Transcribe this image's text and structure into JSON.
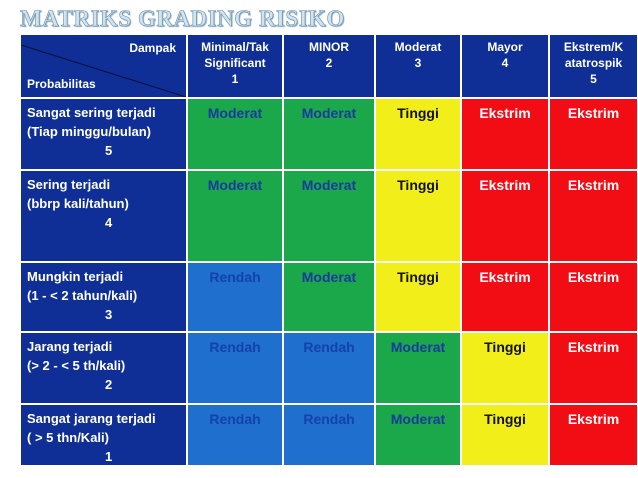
{
  "title": "MATRIKS GRADING RISIKO",
  "corner": {
    "dampak": "Dampak",
    "probabilitas": "Probabilitas"
  },
  "columns": [
    {
      "lines": [
        "Minimal/Tak",
        "Significant",
        "1"
      ]
    },
    {
      "lines": [
        "MINOR",
        "2"
      ]
    },
    {
      "lines": [
        "Moderat",
        "3"
      ]
    },
    {
      "lines": [
        "Mayor",
        "4"
      ]
    },
    {
      "lines": [
        "Ekstrem/K",
        "atatrospik",
        "5"
      ]
    }
  ],
  "rows": [
    {
      "label1": "Sangat sering terjadi",
      "label2": "(Tiap minggu/bulan)",
      "num": "5",
      "cells": [
        "Moderat",
        "Moderat",
        "Tinggi",
        "Ekstrim",
        "Ekstrim"
      ]
    },
    {
      "label1": "Sering terjadi",
      "label2": "(bbrp kali/tahun)",
      "num": "4",
      "cells": [
        "Moderat",
        "Moderat",
        "Tinggi",
        "Ekstrim",
        "Ekstrim"
      ]
    },
    {
      "label1": "Mungkin terjadi",
      "label2": "(1 -  < 2 tahun/kali)",
      "num": "3",
      "cells": [
        "Rendah",
        "Moderat",
        "Tinggi",
        "Ekstrim",
        "Ekstrim"
      ]
    },
    {
      "label1": "Jarang terjadi",
      "label2": "(> 2 - < 5 th/kali)",
      "num": "2",
      "cells": [
        "Rendah",
        "Rendah",
        "Moderat",
        "Tinggi",
        "Ekstrim"
      ]
    },
    {
      "label1": "Sangat jarang terjadi",
      "label2": "( > 5 thn/Kali)",
      "num": "1",
      "cells": [
        "Rendah",
        "Rendah",
        "Moderat",
        "Tinggi",
        "Ekstrim"
      ]
    }
  ],
  "colors": {
    "header_blue": "#0f2f96",
    "rendah": "#1f6fcf",
    "moderat_low": "#1aa84a",
    "moderat_mid": "#f2ee1a",
    "tinggi": "#f2ee1a",
    "ekstrim": "#f20c14"
  }
}
